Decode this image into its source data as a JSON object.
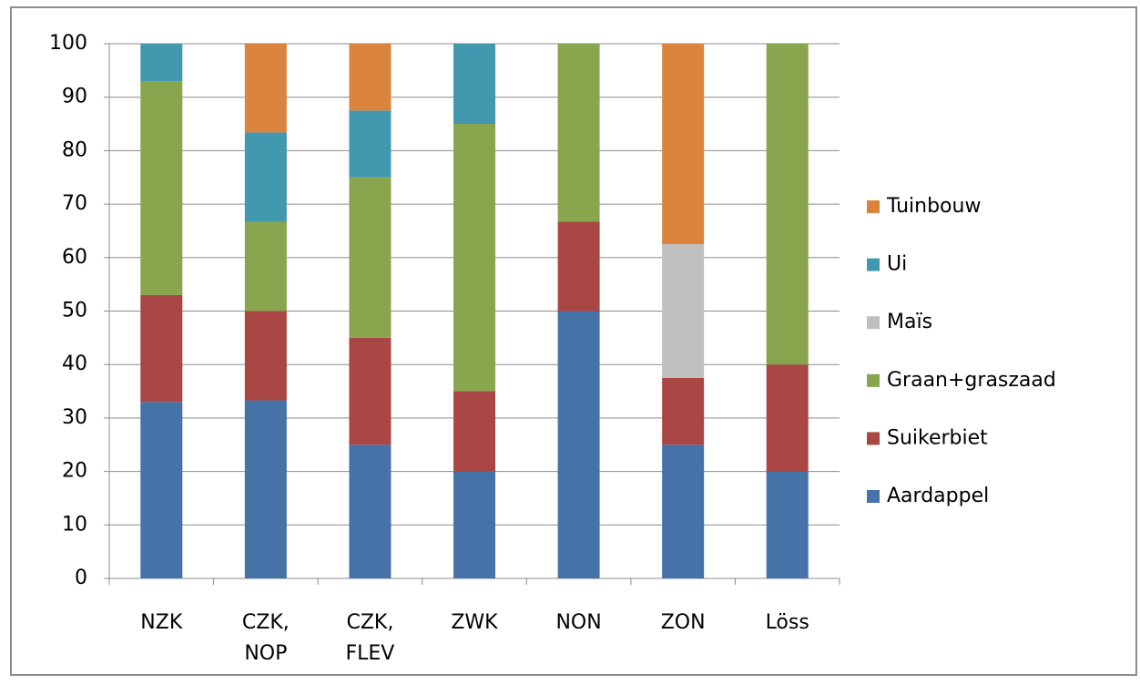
{
  "chart_data": {
    "type": "stacked-bar",
    "categories": [
      "NZK",
      "CZK, NOP",
      "CZK, FLEV",
      "ZWK",
      "NON",
      "ZON",
      "Löss"
    ],
    "series": [
      {
        "name": "Aardappel",
        "color": "#4572a7",
        "values": [
          33,
          33.3,
          25,
          20,
          50,
          25,
          20
        ]
      },
      {
        "name": "Suikerbiet",
        "color": "#aa4643",
        "values": [
          20,
          16.7,
          20,
          15,
          16.7,
          12.5,
          20
        ]
      },
      {
        "name": "Graan+graszaad",
        "color": "#89a54e",
        "values": [
          40,
          16.7,
          30,
          50,
          33.3,
          null,
          60
        ]
      },
      {
        "name": "Maïs",
        "color": "#bfbfbf",
        "values": [
          null,
          null,
          null,
          null,
          null,
          25,
          null
        ]
      },
      {
        "name": "Ui",
        "color": "#4198af",
        "values": [
          7,
          16.7,
          12.5,
          15,
          null,
          null,
          null
        ]
      },
      {
        "name": "Tuinbouw",
        "color": "#db843d",
        "values": [
          null,
          16.7,
          12.5,
          null,
          null,
          37.5,
          null
        ]
      }
    ],
    "ylim": [
      0,
      100
    ],
    "yticks": [
      0,
      10,
      20,
      30,
      40,
      50,
      60,
      70,
      80,
      90,
      100
    ],
    "grid": true,
    "legend": "right"
  }
}
